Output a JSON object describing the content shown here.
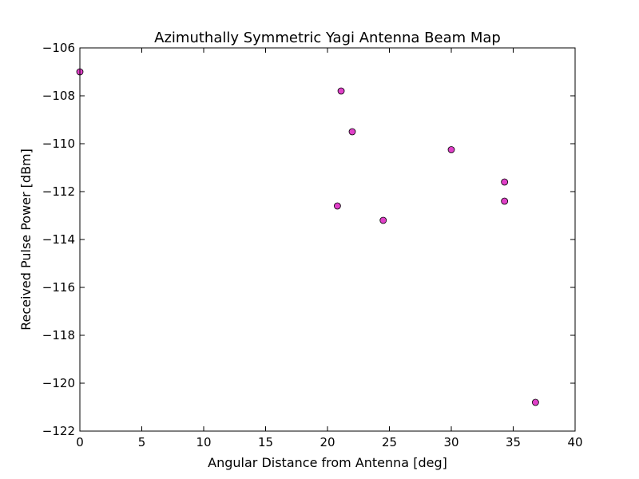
{
  "chart_data": {
    "type": "scatter",
    "title": "Azimuthally Symmetric Yagi Antenna Beam Map",
    "xlabel": "Angular Distance from Antenna [deg]",
    "ylabel": "Received Pulse Power [dBm]",
    "xlim": [
      0,
      40
    ],
    "ylim": [
      -122,
      -106
    ],
    "xticks": [
      0,
      5,
      10,
      15,
      20,
      25,
      30,
      35,
      40
    ],
    "yticks": [
      -122,
      -120,
      -118,
      -116,
      -114,
      -112,
      -110,
      -108,
      -106
    ],
    "xtick_labels": [
      "0",
      "5",
      "10",
      "15",
      "20",
      "25",
      "30",
      "35",
      "40"
    ],
    "ytick_labels": [
      "−122",
      "−120",
      "−118",
      "−116",
      "−114",
      "−112",
      "−110",
      "−108",
      "−106"
    ],
    "grid": false,
    "legend": "none",
    "marker_color": "#e040c8",
    "marker_edge_color": "#000000",
    "series": [
      {
        "points": [
          {
            "x": 0.0,
            "y": -107.0
          },
          {
            "x": 21.1,
            "y": -107.8
          },
          {
            "x": 22.0,
            "y": -109.5
          },
          {
            "x": 30.0,
            "y": -110.25
          },
          {
            "x": 34.3,
            "y": -111.6
          },
          {
            "x": 34.3,
            "y": -112.4
          },
          {
            "x": 20.8,
            "y": -112.6
          },
          {
            "x": 24.5,
            "y": -113.2
          },
          {
            "x": 36.8,
            "y": -120.8
          }
        ]
      }
    ]
  }
}
